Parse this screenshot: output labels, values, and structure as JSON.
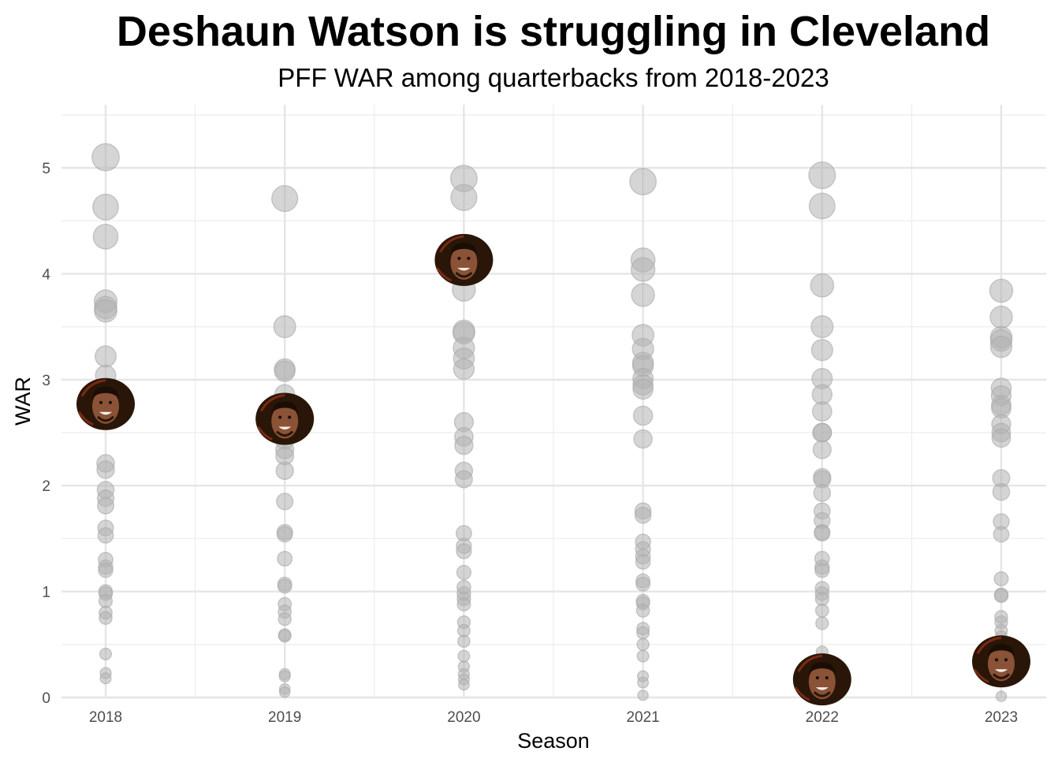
{
  "chart_data": {
    "type": "scatter",
    "title": "Deshaun Watson is struggling in Cleveland",
    "subtitle": "PFF WAR among quarterbacks from 2018-2023",
    "xlabel": "Season",
    "ylabel": "WAR",
    "categories": [
      "2018",
      "2019",
      "2020",
      "2021",
      "2022",
      "2023"
    ],
    "ylim": [
      0,
      5.5
    ],
    "yticks": [
      0,
      1,
      2,
      3,
      4,
      5
    ],
    "grid": true,
    "legend": "none",
    "point_color": "#b3b3b3",
    "highlight": {
      "name": "Deshaun Watson",
      "marker": "player-headshot",
      "points": [
        {
          "season": "2018",
          "war": 2.77
        },
        {
          "season": "2019",
          "war": 2.63
        },
        {
          "season": "2020",
          "war": 4.13
        },
        {
          "season": "2022",
          "war": 0.17
        },
        {
          "season": "2023",
          "war": 0.34
        }
      ]
    },
    "series": [
      {
        "season": "2018",
        "war": [
          5.1,
          4.63,
          4.35,
          3.74,
          3.68,
          3.65,
          3.22,
          3.04,
          2.21,
          2.15,
          1.96,
          1.88,
          1.81,
          1.6,
          1.53,
          1.3,
          1.23,
          1.2,
          1.0,
          0.98,
          0.91,
          0.8,
          0.75,
          0.41,
          0.23,
          0.18
        ]
      },
      {
        "season": "2019",
        "war": [
          4.71,
          3.5,
          3.1,
          3.08,
          2.86,
          2.56,
          2.43,
          2.34,
          2.28,
          2.14,
          1.85,
          1.56,
          1.54,
          1.31,
          1.07,
          1.05,
          0.88,
          0.81,
          0.74,
          0.59,
          0.58,
          0.22,
          0.2,
          0.08,
          0.05
        ]
      },
      {
        "season": "2020",
        "war": [
          4.9,
          4.72,
          3.85,
          3.46,
          3.44,
          3.3,
          3.2,
          3.1,
          2.6,
          2.46,
          2.38,
          2.14,
          2.06,
          1.55,
          1.43,
          1.38,
          1.18,
          1.04,
          0.98,
          0.93,
          0.88,
          0.71,
          0.63,
          0.53,
          0.39,
          0.29,
          0.22,
          0.17,
          0.12
        ]
      },
      {
        "season": "2021",
        "war": [
          4.87,
          4.13,
          4.04,
          3.8,
          3.42,
          3.29,
          3.16,
          3.13,
          3.01,
          2.95,
          2.91,
          2.66,
          2.44,
          1.76,
          1.72,
          1.47,
          1.4,
          1.33,
          1.28,
          1.1,
          1.07,
          0.91,
          0.89,
          0.82,
          0.65,
          0.61,
          0.5,
          0.39,
          0.2,
          0.14,
          0.02
        ]
      },
      {
        "season": "2022",
        "war": [
          4.93,
          4.64,
          3.89,
          3.5,
          3.28,
          3.01,
          2.86,
          2.7,
          2.5,
          2.5,
          2.34,
          2.08,
          2.06,
          1.93,
          1.76,
          1.67,
          1.56,
          1.55,
          1.31,
          1.23,
          1.2,
          1.03,
          0.98,
          0.93,
          0.82,
          0.7,
          0.43
        ]
      },
      {
        "season": "2023",
        "war": [
          3.84,
          3.59,
          3.4,
          3.37,
          3.31,
          2.92,
          2.85,
          2.76,
          2.73,
          2.58,
          2.5,
          2.45,
          2.07,
          1.94,
          1.66,
          1.54,
          1.12,
          0.97,
          0.96,
          0.76,
          0.71,
          0.63,
          0.57,
          0.53,
          0.17,
          0.01
        ]
      }
    ]
  }
}
